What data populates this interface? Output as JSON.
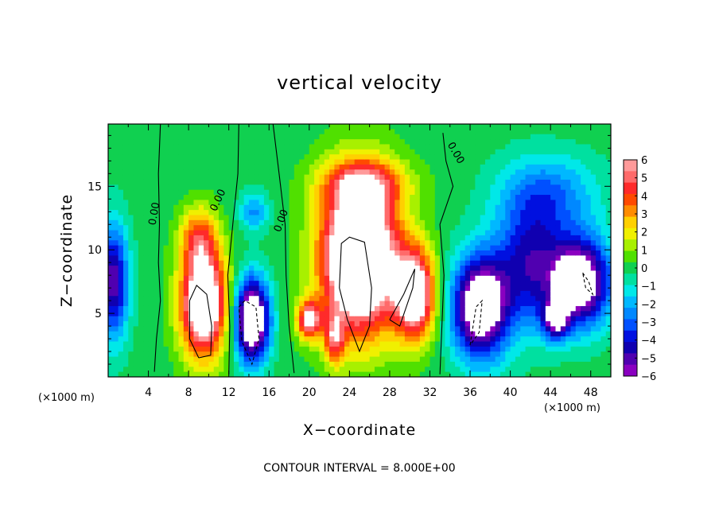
{
  "chart_data": {
    "type": "heatmap",
    "title": "vertical velocity",
    "xlabel": "X−coordinate",
    "ylabel": "Z−coordinate",
    "x_unit": "(×1000 m)",
    "x_unit_right": "(×1000 m)",
    "footer": "CONTOUR INTERVAL = 8.000E+00",
    "xlim": [
      0,
      50
    ],
    "ylim": [
      0,
      19.9
    ],
    "x_ticks": [
      "4",
      "8",
      "12",
      "16",
      "20",
      "24",
      "28",
      "32",
      "36",
      "40",
      "44",
      "48"
    ],
    "y_ticks": [
      "5",
      "10",
      "15"
    ],
    "colorbar": {
      "min": -6,
      "max": 6,
      "labels": [
        "6",
        "5",
        "4",
        "3",
        "2",
        "1",
        "0",
        "−1",
        "−2",
        "−3",
        "−4",
        "−5",
        "−6"
      ],
      "colors": [
        "#ff9a9a",
        "#ff6a6a",
        "#ff2a2a",
        "#ff4a00",
        "#ff8c00",
        "#ffd000",
        "#f0f000",
        "#a8f000",
        "#50e000",
        "#10d050",
        "#00e0a0",
        "#00e8e8",
        "#00b8ff",
        "#0088ff",
        "#0050ff",
        "#0010e0",
        "#1000b0",
        "#5000b0",
        "#8a00c0"
      ]
    },
    "contour_labels": [
      "0.00",
      "0.00",
      "0.00",
      "0.00"
    ],
    "contour_interval": 8,
    "saturation": "white = beyond ±6 (saturated)",
    "features": [
      {
        "kind": "updraft",
        "x": 9.5,
        "z": 5.8,
        "sx": 2.3,
        "sz": 4.2,
        "w": 9
      },
      {
        "kind": "updraft",
        "x": 9.0,
        "z": 11.0,
        "sx": 1.8,
        "sz": 2.4,
        "w": 3.5
      },
      {
        "kind": "updraft",
        "x": 25.0,
        "z": 9.5,
        "sx": 3.8,
        "sz": 6.0,
        "w": 11
      },
      {
        "kind": "updraft",
        "x": 25.5,
        "z": 15.2,
        "sx": 4.2,
        "sz": 1.8,
        "w": 3.5
      },
      {
        "kind": "updraft",
        "x": 30.5,
        "z": 6.5,
        "sx": 2.0,
        "sz": 3.5,
        "w": 8
      },
      {
        "kind": "updraft",
        "x": 20.0,
        "z": 4.5,
        "sx": 1.2,
        "sz": 1.5,
        "w": 6
      },
      {
        "kind": "updraft",
        "x": 22.5,
        "z": 3.0,
        "sx": 1.0,
        "sz": 2.0,
        "w": 4
      },
      {
        "kind": "downdraft",
        "x": 14.3,
        "z": 4.5,
        "sx": 1.7,
        "sz": 3.2,
        "w": -9
      },
      {
        "kind": "downdraft",
        "x": 14.5,
        "z": 13.0,
        "sx": 1.5,
        "sz": 1.5,
        "w": -2.5
      },
      {
        "kind": "downdraft",
        "x": 37.0,
        "z": 5.5,
        "sx": 2.8,
        "sz": 4.0,
        "w": -8
      },
      {
        "kind": "downdraft",
        "x": 42.0,
        "z": 9.0,
        "sx": 3.5,
        "sz": 5.0,
        "w": -4.5
      },
      {
        "kind": "downdraft",
        "x": 47.0,
        "z": 7.5,
        "sx": 3.0,
        "sz": 3.5,
        "w": -7.5
      },
      {
        "kind": "downdraft",
        "x": 44.5,
        "z": 4.5,
        "sx": 1.3,
        "sz": 1.5,
        "w": -5
      },
      {
        "kind": "downdraft",
        "x": 0.5,
        "z": 7.5,
        "sx": 1.5,
        "sz": 4.5,
        "w": -5.5
      },
      {
        "kind": "downdraft",
        "x": 44.0,
        "z": 14.5,
        "sx": 5.0,
        "sz": 3.0,
        "w": -2.5
      }
    ]
  }
}
